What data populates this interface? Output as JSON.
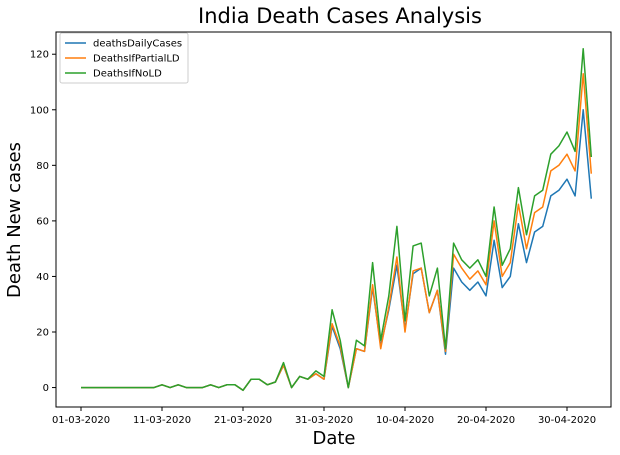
{
  "chart_data": {
    "type": "line",
    "title": "India Death Cases Analysis",
    "xlabel": "Date",
    "ylabel": "Death New cases",
    "x_start": "01-03-2020",
    "x_end": "04-05-2020",
    "x_ticks": [
      "01-03-2020",
      "11-03-2020",
      "21-03-2020",
      "31-03-2020",
      "10-04-2020",
      "20-04-2020",
      "30-04-2020"
    ],
    "y_ticks": [
      0,
      20,
      40,
      60,
      80,
      100,
      120
    ],
    "ylim": [
      -7,
      128
    ],
    "grid": false,
    "legend_position": "top-left",
    "series": [
      {
        "name": "deathsDailyCases",
        "color": "#1f77b4",
        "values": [
          0,
          0,
          0,
          0,
          0,
          0,
          0,
          0,
          0,
          0,
          1,
          0,
          1,
          0,
          0,
          0,
          1,
          0,
          1,
          1,
          -1,
          3,
          3,
          1,
          2,
          8,
          0,
          4,
          3,
          5,
          3,
          22,
          14,
          0,
          14,
          13,
          36,
          15,
          28,
          44,
          21,
          41,
          43,
          27,
          35,
          12,
          43,
          38,
          35,
          38,
          33,
          53,
          36,
          40,
          59,
          45,
          56,
          58,
          69,
          71,
          75,
          69,
          100,
          68
        ]
      },
      {
        "name": "DeathsIfPartialLD",
        "color": "#ff7f0e",
        "values": [
          0,
          0,
          0,
          0,
          0,
          0,
          0,
          0,
          0,
          0,
          1,
          0,
          1,
          0,
          0,
          0,
          1,
          0,
          1,
          1,
          -1,
          3,
          3,
          1,
          2,
          8,
          0,
          4,
          3,
          5,
          3,
          23,
          15,
          0,
          14,
          13,
          37,
          14,
          29,
          47,
          20,
          42,
          43,
          27,
          35,
          13,
          48,
          43,
          39,
          42,
          37,
          60,
          40,
          45,
          66,
          50,
          63,
          65,
          78,
          80,
          84,
          78,
          113,
          77
        ]
      },
      {
        "name": "DeathsIfNoLD",
        "color": "#2ca02c",
        "values": [
          0,
          0,
          0,
          0,
          0,
          0,
          0,
          0,
          0,
          0,
          1,
          0,
          1,
          0,
          0,
          0,
          1,
          0,
          1,
          1,
          -1,
          3,
          3,
          1,
          2,
          9,
          0,
          4,
          3,
          6,
          4,
          28,
          17,
          0,
          17,
          15,
          45,
          17,
          33,
          58,
          24,
          51,
          52,
          33,
          43,
          14,
          52,
          46,
          43,
          46,
          40,
          65,
          44,
          50,
          72,
          55,
          69,
          71,
          84,
          87,
          92,
          85,
          122,
          83
        ]
      }
    ]
  }
}
